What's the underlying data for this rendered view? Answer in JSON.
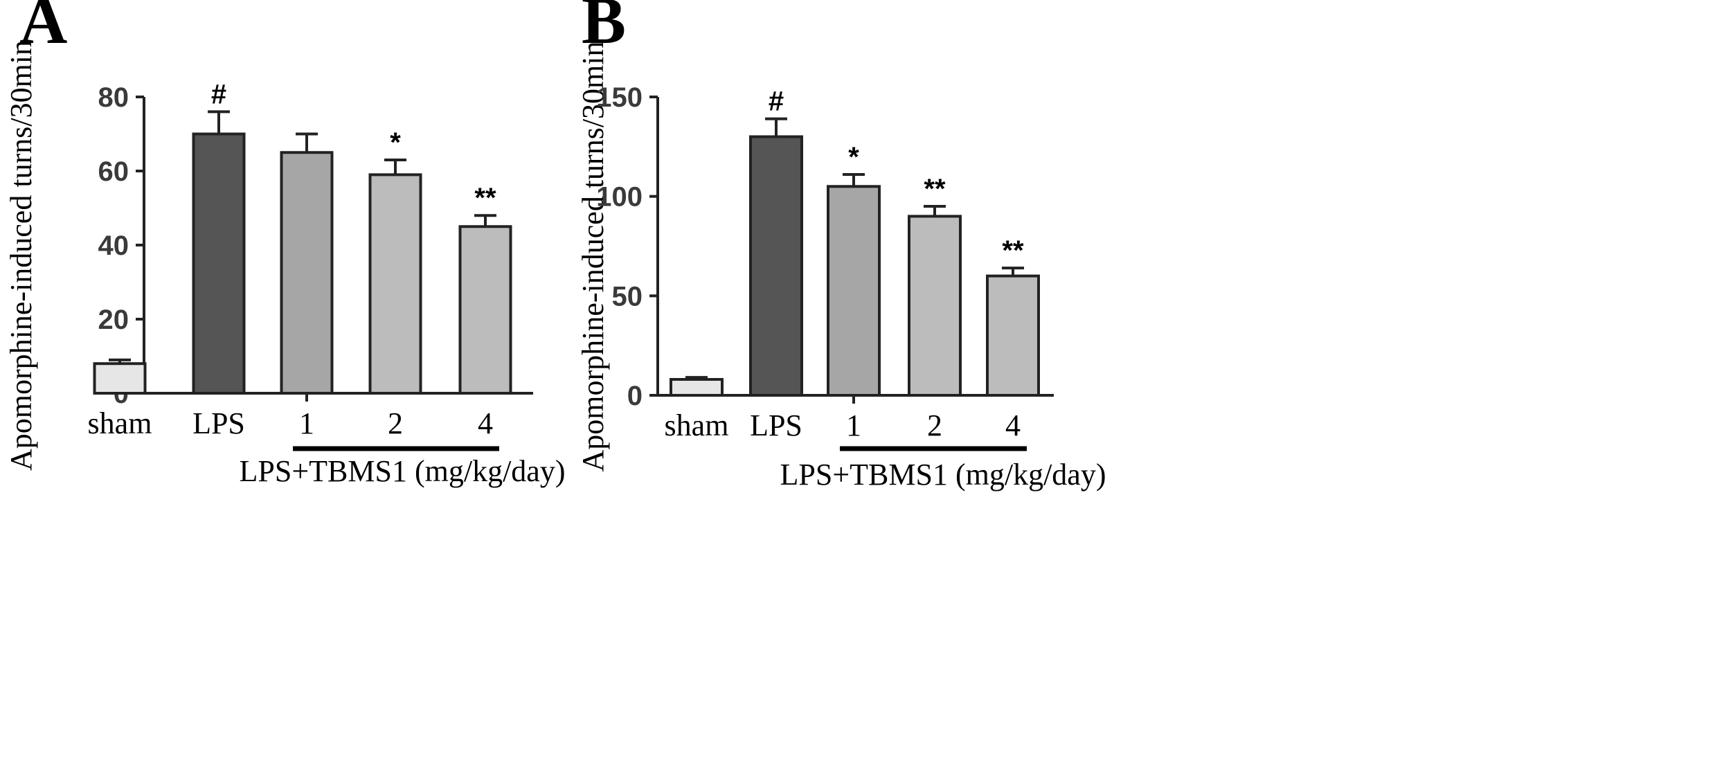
{
  "chart_data": [
    {
      "panel": "A",
      "type": "bar",
      "categories": [
        "sham",
        "LPS",
        "1",
        "2",
        "4"
      ],
      "values": [
        8,
        70,
        65,
        59,
        45
      ],
      "errors": [
        1,
        6,
        5,
        4,
        3
      ],
      "annotations": [
        "",
        "#",
        "",
        "*",
        "**"
      ],
      "colors": [
        "#e6e6e6",
        "#555555",
        "#a6a6a6",
        "#bcbcbc",
        "#bcbcbc"
      ],
      "ylabel": "Apomorphine-induced turns/30min",
      "yticks": [
        0,
        20,
        40,
        60,
        80
      ],
      "ylim": [
        0,
        80
      ],
      "group_label": "LPS+TBMS1 (mg/kg/day)",
      "group_start": 2,
      "group_end": 4
    },
    {
      "panel": "B",
      "type": "bar",
      "categories": [
        "sham",
        "LPS",
        "1",
        "2",
        "4"
      ],
      "values": [
        8,
        130,
        105,
        90,
        60
      ],
      "errors": [
        1,
        9,
        6,
        5,
        4
      ],
      "annotations": [
        "",
        "#",
        "*",
        "**",
        "**"
      ],
      "colors": [
        "#e6e6e6",
        "#555555",
        "#a6a6a6",
        "#bcbcbc",
        "#bcbcbc"
      ],
      "ylabel": "Apomorphine-induced turns/30min",
      "yticks": [
        0,
        50,
        100,
        150
      ],
      "ylim": [
        0,
        150
      ],
      "group_label": "LPS+TBMS1 (mg/kg/day)",
      "group_start": 2,
      "group_end": 4
    }
  ]
}
